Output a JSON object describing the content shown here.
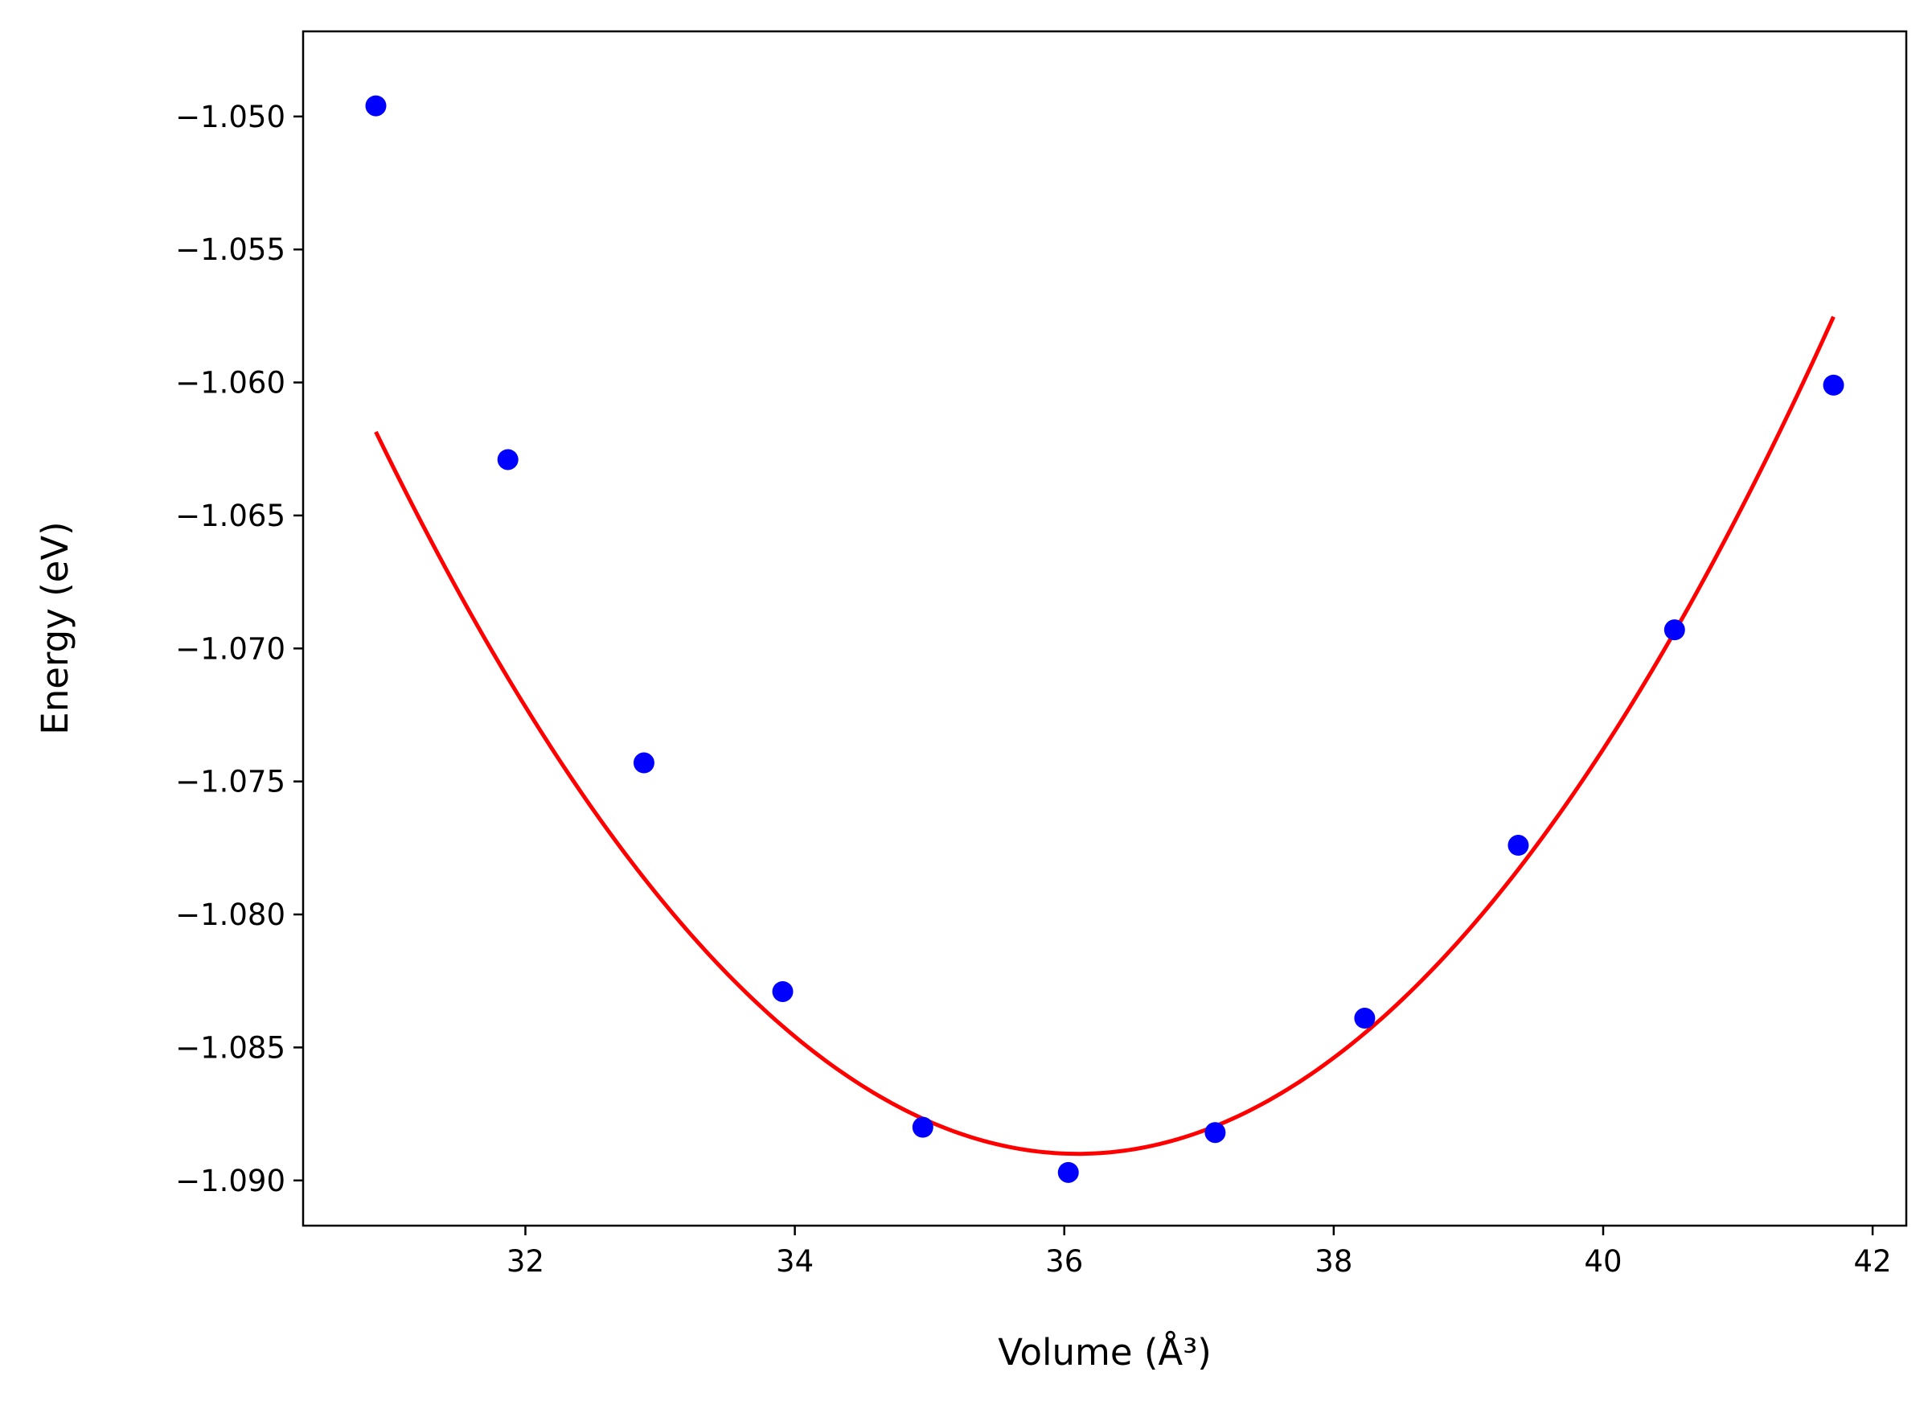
{
  "chart_data": {
    "type": "scatter",
    "title": "",
    "xlabel": "Volume (Å³)",
    "ylabel": "Energy (eV)",
    "xlim": [
      30.35,
      42.25
    ],
    "ylim": [
      -1.0917,
      -1.0468
    ],
    "xticks": [
      32,
      34,
      36,
      38,
      40,
      42
    ],
    "xtick_labels": [
      "32",
      "34",
      "36",
      "38",
      "40",
      "42"
    ],
    "yticks": [
      -1.05,
      -1.055,
      -1.06,
      -1.065,
      -1.07,
      -1.075,
      -1.08,
      -1.085,
      -1.09
    ],
    "ytick_labels": [
      "−1.050",
      "−1.055",
      "−1.060",
      "−1.065",
      "−1.070",
      "−1.075",
      "−1.080",
      "−1.085",
      "−1.090"
    ],
    "grid": false,
    "series": [
      {
        "kind": "scatter",
        "color": "#0000ff",
        "x": [
          30.89,
          31.87,
          32.88,
          33.91,
          34.95,
          36.03,
          37.12,
          38.23,
          39.37,
          40.53,
          41.71
        ],
        "y": [
          -1.0496,
          -1.0629,
          -1.0743,
          -1.0829,
          -1.088,
          -1.0897,
          -1.0882,
          -1.0839,
          -1.0774,
          -1.0693,
          -1.0601
        ]
      },
      {
        "kind": "line",
        "color": "#ff0000",
        "fit": {
          "a": 0.001,
          "b": 36.1,
          "c": -1.089
        },
        "x_range": [
          30.89,
          41.71
        ]
      }
    ]
  }
}
